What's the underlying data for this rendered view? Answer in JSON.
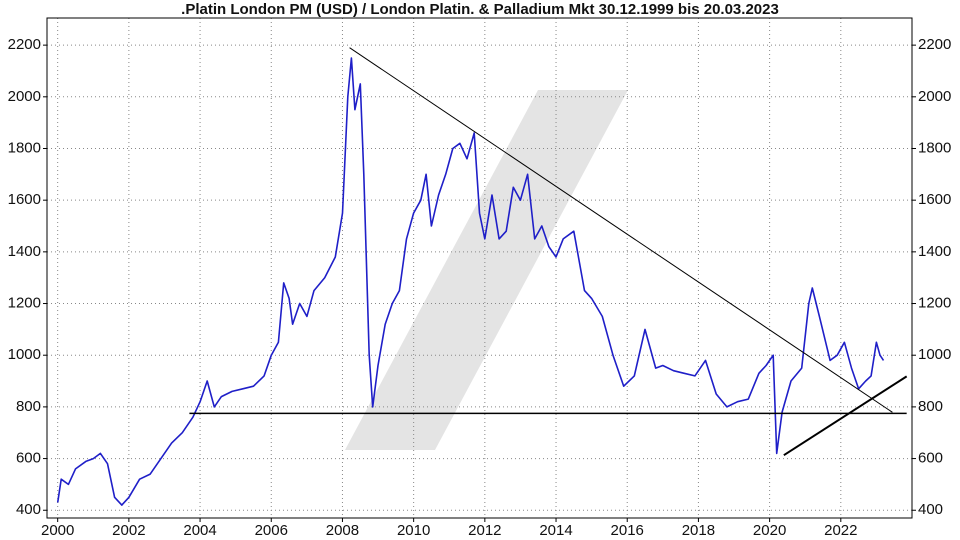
{
  "chart_data": {
    "type": "line",
    "title": ".Platin London PM (USD) / London Platin. & Palladium Mkt 30.12.1999 bis 20.03.2023",
    "xlim": [
      1999.7,
      2024.0
    ],
    "xticks": [
      2000,
      2002,
      2004,
      2006,
      2008,
      2010,
      2012,
      2014,
      2016,
      2018,
      2020,
      2022
    ],
    "ylim": [
      370,
      2305
    ],
    "yticks": [
      400,
      600,
      800,
      1000,
      1200,
      1400,
      1600,
      1800,
      2000,
      2200
    ],
    "grid": true,
    "series": [
      {
        "color": "#1f1fc8",
        "x": [
          2000.0,
          2000.1,
          2000.3,
          2000.5,
          2000.8,
          2001.0,
          2001.2,
          2001.4,
          2001.6,
          2001.8,
          2002.0,
          2002.3,
          2002.6,
          2002.9,
          2003.2,
          2003.5,
          2003.8,
          2004.0,
          2004.2,
          2004.4,
          2004.6,
          2004.9,
          2005.2,
          2005.5,
          2005.8,
          2006.0,
          2006.2,
          2006.35,
          2006.5,
          2006.6,
          2006.8,
          2007.0,
          2007.2,
          2007.5,
          2007.8,
          2008.0,
          2008.15,
          2008.25,
          2008.35,
          2008.5,
          2008.6,
          2008.75,
          2008.85,
          2009.0,
          2009.2,
          2009.4,
          2009.6,
          2009.8,
          2010.0,
          2010.2,
          2010.35,
          2010.5,
          2010.7,
          2010.9,
          2011.1,
          2011.3,
          2011.5,
          2011.7,
          2011.85,
          2012.0,
          2012.2,
          2012.4,
          2012.6,
          2012.8,
          2013.0,
          2013.2,
          2013.4,
          2013.6,
          2013.8,
          2014.0,
          2014.2,
          2014.5,
          2014.8,
          2015.0,
          2015.3,
          2015.6,
          2015.9,
          2016.2,
          2016.5,
          2016.8,
          2017.0,
          2017.3,
          2017.6,
          2017.9,
          2018.2,
          2018.5,
          2018.8,
          2019.1,
          2019.4,
          2019.7,
          2019.9,
          2020.1,
          2020.2,
          2020.35,
          2020.6,
          2020.9,
          2021.1,
          2021.2,
          2021.4,
          2021.7,
          2021.9,
          2022.1,
          2022.3,
          2022.5,
          2022.7,
          2022.85,
          2023.0,
          2023.1,
          2023.2
        ],
        "values": [
          430,
          520,
          500,
          560,
          590,
          600,
          620,
          580,
          450,
          420,
          450,
          520,
          540,
          600,
          660,
          700,
          760,
          820,
          900,
          800,
          840,
          860,
          870,
          880,
          920,
          1000,
          1050,
          1280,
          1220,
          1120,
          1200,
          1150,
          1250,
          1300,
          1380,
          1550,
          2000,
          2150,
          1950,
          2050,
          1700,
          1000,
          800,
          960,
          1120,
          1200,
          1250,
          1450,
          1550,
          1600,
          1700,
          1500,
          1620,
          1700,
          1800,
          1820,
          1760,
          1860,
          1550,
          1450,
          1620,
          1450,
          1480,
          1650,
          1600,
          1700,
          1450,
          1500,
          1420,
          1380,
          1450,
          1480,
          1250,
          1220,
          1150,
          1000,
          880,
          920,
          1100,
          950,
          960,
          940,
          930,
          920,
          980,
          850,
          800,
          820,
          830,
          930,
          960,
          1000,
          620,
          780,
          900,
          950,
          1200,
          1260,
          1150,
          980,
          1000,
          1050,
          950,
          870,
          900,
          920,
          1050,
          1000,
          980
        ]
      }
    ],
    "trendlines": [
      {
        "x": [
          2008.2,
          2023.45
        ],
        "y": [
          2190,
          779
        ],
        "width": 1
      },
      {
        "x": [
          2003.7,
          2023.85
        ],
        "y": [
          775,
          775
        ],
        "width": 1.5
      },
      {
        "x": [
          2020.4,
          2023.85
        ],
        "y": [
          613,
          918
        ],
        "width": 2
      }
    ]
  }
}
